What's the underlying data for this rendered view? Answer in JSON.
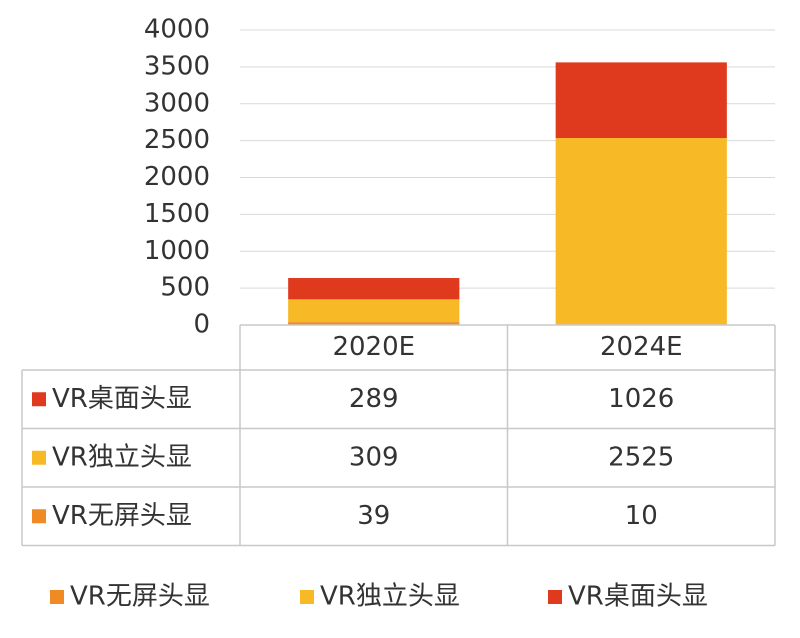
{
  "chart_data": {
    "type": "stacked_bar",
    "categories": [
      "2020E",
      "2024E"
    ],
    "series": [
      {
        "name": "VR无屏头显",
        "color": "#f08a24",
        "values": [
          39,
          10
        ]
      },
      {
        "name": "VR独立头显",
        "color": "#f7b926",
        "values": [
          309,
          2525
        ]
      },
      {
        "name": "VR桌面头显",
        "color": "#e03a1e",
        "values": [
          289,
          1026
        ]
      }
    ],
    "ylim": [
      0,
      4000
    ],
    "yticks": [
      0,
      500,
      1000,
      1500,
      2000,
      2500,
      3000,
      3500,
      4000
    ],
    "grid": true,
    "legend": "bottom",
    "data_table": true
  }
}
